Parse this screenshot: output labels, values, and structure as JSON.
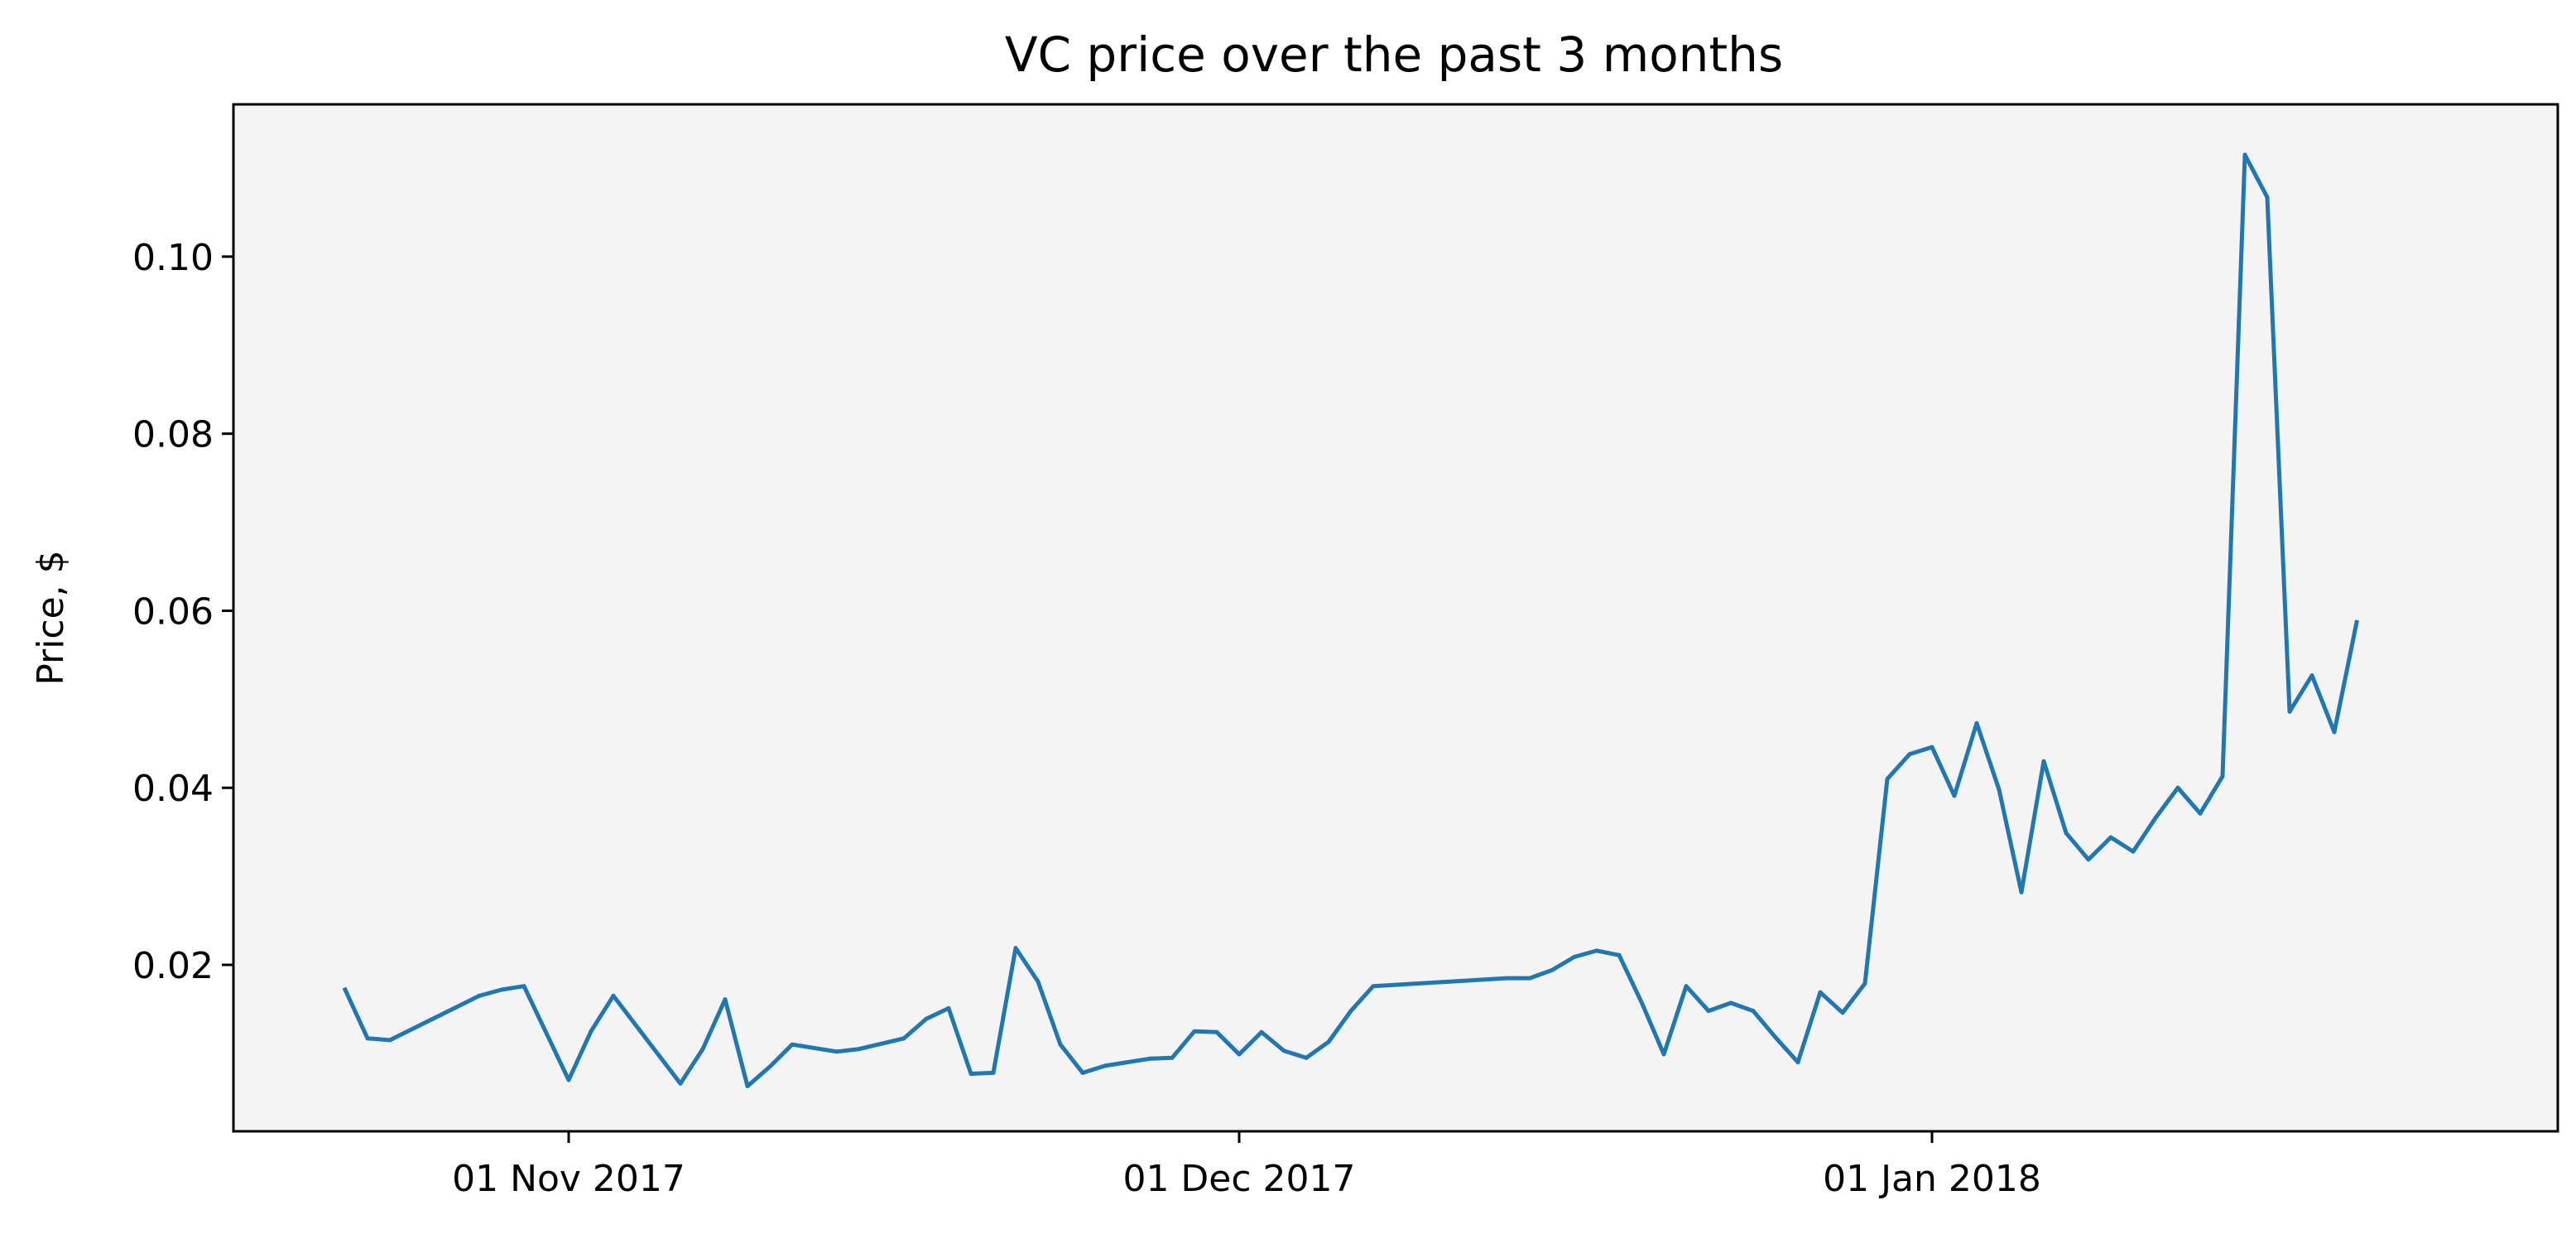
{
  "chart_data": {
    "type": "line",
    "title": "VC price over the past 3 months",
    "xlabel": "",
    "ylabel": "Price, $",
    "grid": false,
    "legend": "none",
    "colors": {
      "line": "#1f77b4",
      "plot_background": "#f4f4f4",
      "axes": "#000000"
    },
    "x_range": [
      "2017-10-17",
      "2018-01-29"
    ],
    "ylim": [
      0.0012,
      0.1172
    ],
    "x_ticks": [
      {
        "date": "2017-11-01",
        "label": "01 Nov 2017"
      },
      {
        "date": "2017-12-01",
        "label": "01 Dec 2017"
      },
      {
        "date": "2018-01-01",
        "label": "01 Jan 2018"
      }
    ],
    "y_ticks": [
      {
        "value": 0.02,
        "label": "0.02"
      },
      {
        "value": 0.04,
        "label": "0.04"
      },
      {
        "value": 0.06,
        "label": "0.06"
      },
      {
        "value": 0.08,
        "label": "0.08"
      },
      {
        "value": 0.1,
        "label": "0.10"
      }
    ],
    "series": [
      {
        "points": [
          [
            "2017-10-22",
            0.0172
          ],
          [
            "2017-10-23",
            0.0117
          ],
          [
            "2017-10-24",
            0.0115
          ],
          [
            "2017-10-28",
            0.0165
          ],
          [
            "2017-10-29",
            0.0172
          ],
          [
            "2017-10-30",
            0.0176
          ],
          [
            "2017-11-01",
            0.007
          ],
          [
            "2017-11-02",
            0.0125
          ],
          [
            "2017-11-03",
            0.0165
          ],
          [
            "2017-11-06",
            0.0066
          ],
          [
            "2017-11-07",
            0.0105
          ],
          [
            "2017-11-08",
            0.0161
          ],
          [
            "2017-11-09",
            0.0063
          ],
          [
            "2017-11-10",
            0.0085
          ],
          [
            "2017-11-11",
            0.011
          ],
          [
            "2017-11-13",
            0.0102
          ],
          [
            "2017-11-14",
            0.0105
          ],
          [
            "2017-11-16",
            0.0117
          ],
          [
            "2017-11-17",
            0.0139
          ],
          [
            "2017-11-18",
            0.0151
          ],
          [
            "2017-11-19",
            0.0077
          ],
          [
            "2017-11-20",
            0.0078
          ],
          [
            "2017-11-21",
            0.0219
          ],
          [
            "2017-11-22",
            0.0181
          ],
          [
            "2017-11-23",
            0.011
          ],
          [
            "2017-11-24",
            0.0078
          ],
          [
            "2017-11-25",
            0.0086
          ],
          [
            "2017-11-27",
            0.0094
          ],
          [
            "2017-11-28",
            0.0095
          ],
          [
            "2017-11-29",
            0.0125
          ],
          [
            "2017-11-30",
            0.0124
          ],
          [
            "2017-12-01",
            0.0099
          ],
          [
            "2017-12-02",
            0.0124
          ],
          [
            "2017-12-03",
            0.0103
          ],
          [
            "2017-12-04",
            0.0095
          ],
          [
            "2017-12-05",
            0.0113
          ],
          [
            "2017-12-06",
            0.0148
          ],
          [
            "2017-12-07",
            0.0176
          ],
          [
            "2017-12-13",
            0.0185
          ],
          [
            "2017-12-14",
            0.0185
          ],
          [
            "2017-12-15",
            0.0194
          ],
          [
            "2017-12-16",
            0.0209
          ],
          [
            "2017-12-17",
            0.0216
          ],
          [
            "2017-12-18",
            0.0211
          ],
          [
            "2017-12-19",
            0.0158
          ],
          [
            "2017-12-20",
            0.0099
          ],
          [
            "2017-12-21",
            0.0176
          ],
          [
            "2017-12-22",
            0.0148
          ],
          [
            "2017-12-23",
            0.0157
          ],
          [
            "2017-12-24",
            0.0148
          ],
          [
            "2017-12-25",
            0.0118
          ],
          [
            "2017-12-26",
            0.009
          ],
          [
            "2017-12-27",
            0.0169
          ],
          [
            "2017-12-28",
            0.0146
          ],
          [
            "2017-12-29",
            0.0179
          ],
          [
            "2017-12-30",
            0.041
          ],
          [
            "2017-12-31",
            0.0438
          ],
          [
            "2018-01-01",
            0.0446
          ],
          [
            "2018-01-02",
            0.0391
          ],
          [
            "2018-01-03",
            0.0473
          ],
          [
            "2018-01-04",
            0.0398
          ],
          [
            "2018-01-05",
            0.0282
          ],
          [
            "2018-01-06",
            0.043
          ],
          [
            "2018-01-07",
            0.0349
          ],
          [
            "2018-01-08",
            0.0319
          ],
          [
            "2018-01-09",
            0.0344
          ],
          [
            "2018-01-10",
            0.0328
          ],
          [
            "2018-01-11",
            0.0366
          ],
          [
            "2018-01-12",
            0.04
          ],
          [
            "2018-01-13",
            0.0371
          ],
          [
            "2018-01-14",
            0.0413
          ],
          [
            "2018-01-15",
            0.1115
          ],
          [
            "2018-01-16",
            0.1067
          ],
          [
            "2018-01-17",
            0.0486
          ],
          [
            "2018-01-18",
            0.0527
          ],
          [
            "2018-01-19",
            0.0463
          ],
          [
            "2018-01-20",
            0.0587
          ]
        ]
      }
    ]
  }
}
